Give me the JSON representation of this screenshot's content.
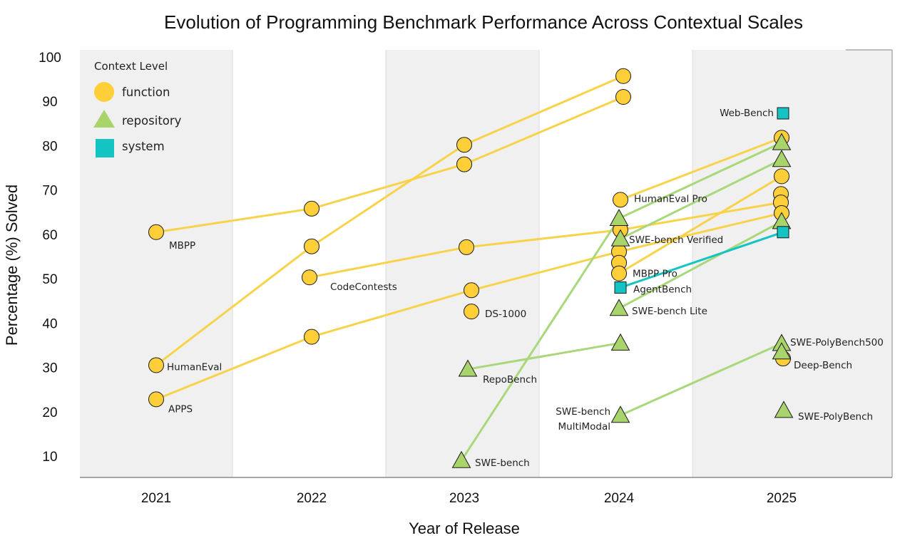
{
  "chart_data": {
    "type": "scatter",
    "title": "Evolution of Programming Benchmark Performance Across Contextual Scales",
    "xlabel": "Year of Release",
    "ylabel": "Percentage (%)  Solved",
    "x_ticks": [
      "2021",
      "2022",
      "2023",
      "2024",
      "2025"
    ],
    "y_ticks": [
      "10",
      "20",
      "30",
      "40",
      "50",
      "60",
      "70",
      "80",
      "90",
      "100"
    ],
    "ylim": [
      5,
      100
    ],
    "legend": {
      "title": "Context Level",
      "position": "top-left",
      "entries": [
        {
          "label": "function",
          "marker": "circle",
          "color": "#FFCF3A"
        },
        {
          "label": "repository",
          "marker": "triangle",
          "color": "#A9D36B"
        },
        {
          "label": "system",
          "marker": "square",
          "color": "#14C4C4"
        }
      ]
    },
    "colors": {
      "function_fill": "#FFCF3A",
      "function_line": "#F8D34A",
      "repository_fill": "#A9D36B",
      "repository_line": "#A9D87A",
      "system_fill": "#14C4C4",
      "system_line": "#14C4C4",
      "band": "#F0F0F0"
    },
    "points": [
      {
        "id": "mbpp",
        "year": 2021,
        "value": 60.5,
        "level": "function",
        "label": "MBPP"
      },
      {
        "id": "humaneval",
        "year": 2021,
        "value": 30.5,
        "level": "function",
        "label": "HumanEval"
      },
      {
        "id": "apps",
        "year": 2021,
        "value": 22.8,
        "level": "function",
        "label": "APPS"
      },
      {
        "id": "p2022a",
        "year": 2022,
        "value": 65.8,
        "level": "function"
      },
      {
        "id": "p2022b",
        "year": 2022,
        "value": 57.3,
        "level": "function"
      },
      {
        "id": "codecontests",
        "year": 2022,
        "value": 50.3,
        "level": "function",
        "label": "CodeContests"
      },
      {
        "id": "p2022c",
        "year": 2022,
        "value": 36.9,
        "level": "function"
      },
      {
        "id": "p2023a",
        "year": 2023,
        "value": 80.2,
        "level": "function"
      },
      {
        "id": "p2023b",
        "year": 2023,
        "value": 75.8,
        "level": "function"
      },
      {
        "id": "p2023c",
        "year": 2023,
        "value": 57.1,
        "level": "function"
      },
      {
        "id": "p2023d",
        "year": 2023,
        "value": 47.4,
        "level": "function"
      },
      {
        "id": "ds1000",
        "year": 2023,
        "value": 42.6,
        "level": "function",
        "label": "DS-1000"
      },
      {
        "id": "repobench",
        "year": 2023,
        "value": 29.6,
        "level": "repository",
        "label": "RepoBench"
      },
      {
        "id": "swebench",
        "year": 2023,
        "value": 9.0,
        "level": "repository",
        "label": "SWE-bench"
      },
      {
        "id": "p2024a",
        "year": 2024,
        "value": 95.7,
        "level": "function"
      },
      {
        "id": "p2024b",
        "year": 2024,
        "value": 91.0,
        "level": "function"
      },
      {
        "id": "humanevalpro",
        "year": 2024,
        "value": 67.8,
        "level": "function",
        "label": "HumanEval Pro"
      },
      {
        "id": "p2024c",
        "year": 2024,
        "value": 63.6,
        "level": "repository"
      },
      {
        "id": "p2024d",
        "year": 2024,
        "value": 61.0,
        "level": "function"
      },
      {
        "id": "swebenchverified",
        "year": 2024,
        "value": 59.0,
        "level": "repository",
        "label": "SWE-bench Verified"
      },
      {
        "id": "p2024e",
        "year": 2024,
        "value": 56.1,
        "level": "function"
      },
      {
        "id": "p2024f",
        "year": 2024,
        "value": 53.6,
        "level": "function"
      },
      {
        "id": "mbpppro",
        "year": 2024,
        "value": 51.2,
        "level": "function",
        "label": "MBPP Pro"
      },
      {
        "id": "agentbench",
        "year": 2024,
        "value": 48.0,
        "level": "system",
        "label": "AgentBench"
      },
      {
        "id": "swebenchlite",
        "year": 2024,
        "value": 43.3,
        "level": "repository",
        "label": "SWE-bench Lite"
      },
      {
        "id": "p2024g",
        "year": 2024,
        "value": 35.5,
        "level": "repository"
      },
      {
        "id": "swebenchmm",
        "year": 2024,
        "value": 19.2,
        "level": "repository",
        "label": "SWE-bench MultiModal"
      },
      {
        "id": "webbench",
        "year": 2025,
        "value": 87.3,
        "level": "system",
        "label": "Web-Bench"
      },
      {
        "id": "p2025a",
        "year": 2025,
        "value": 81.8,
        "level": "function"
      },
      {
        "id": "p2025b",
        "year": 2025,
        "value": 80.7,
        "level": "repository"
      },
      {
        "id": "p2025c",
        "year": 2025,
        "value": 76.9,
        "level": "repository"
      },
      {
        "id": "p2025d",
        "year": 2025,
        "value": 73.1,
        "level": "function"
      },
      {
        "id": "p2025e",
        "year": 2025,
        "value": 69.1,
        "level": "function"
      },
      {
        "id": "p2025f",
        "year": 2025,
        "value": 67.2,
        "level": "function"
      },
      {
        "id": "p2025g",
        "year": 2025,
        "value": 64.8,
        "level": "function"
      },
      {
        "id": "p2025h",
        "year": 2025,
        "value": 62.9,
        "level": "repository"
      },
      {
        "id": "p2025i",
        "year": 2025,
        "value": 60.5,
        "level": "system"
      },
      {
        "id": "swepolybench500",
        "year": 2025,
        "value": 35.4,
        "level": "repository",
        "label": "SWE-PolyBench500"
      },
      {
        "id": "p2025j",
        "year": 2025,
        "value": 33.5,
        "level": "repository"
      },
      {
        "id": "deepbench",
        "year": 2025,
        "value": 32.0,
        "level": "function",
        "label": "Deep-Bench"
      },
      {
        "id": "swepolybench",
        "year": 2025,
        "value": 20.3,
        "level": "repository",
        "label": "SWE-PolyBench"
      }
    ],
    "lines": [
      {
        "from": "mbpp",
        "to": "p2022a",
        "level": "function"
      },
      {
        "from": "p2022a",
        "to": "p2023b",
        "level": "function"
      },
      {
        "from": "humaneval",
        "to": "p2022b",
        "level": "function"
      },
      {
        "from": "p2022b",
        "to": "p2023a",
        "level": "function"
      },
      {
        "from": "p2023a",
        "to": "p2024a",
        "level": "function"
      },
      {
        "from": "p2023b",
        "to": "p2024b",
        "level": "function"
      },
      {
        "from": "apps",
        "to": "p2022c",
        "level": "function"
      },
      {
        "from": "p2022c",
        "to": "p2023d",
        "level": "function"
      },
      {
        "from": "p2023d",
        "to": "p2024e",
        "level": "function"
      },
      {
        "from": "codecontests",
        "to": "p2023c",
        "level": "function"
      },
      {
        "from": "p2023c",
        "to": "p2024d",
        "level": "function"
      },
      {
        "from": "p2024d",
        "to": "p2025f",
        "level": "function"
      },
      {
        "from": "humanevalpro",
        "to": "p2025a",
        "level": "function"
      },
      {
        "from": "mbpppro",
        "to": "p2025d",
        "level": "function"
      },
      {
        "from": "p2024e",
        "to": "p2025g",
        "level": "function"
      },
      {
        "from": "swebench",
        "to": "p2024c",
        "level": "repository"
      },
      {
        "from": "p2024c",
        "to": "p2025b",
        "level": "repository"
      },
      {
        "from": "swebenchverified",
        "to": "p2025c",
        "level": "repository"
      },
      {
        "from": "swebenchlite",
        "to": "p2025h",
        "level": "repository"
      },
      {
        "from": "repobench",
        "to": "p2024g",
        "level": "repository"
      },
      {
        "from": "swebenchmm",
        "to": "swepolybench500",
        "level": "repository"
      },
      {
        "from": "agentbench",
        "to": "p2025i",
        "level": "system"
      }
    ]
  }
}
